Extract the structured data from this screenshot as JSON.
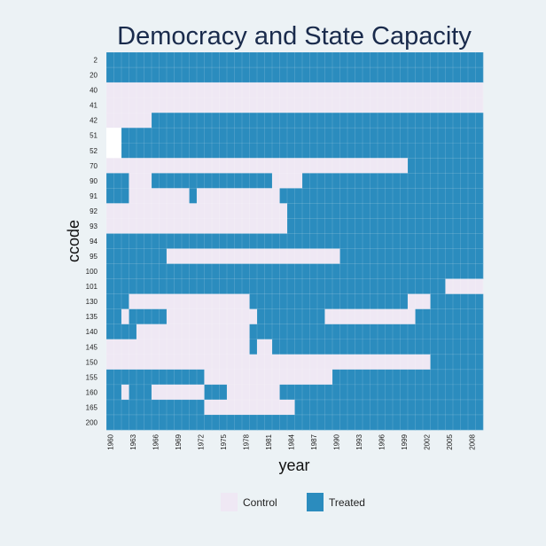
{
  "chart_data": {
    "type": "heatmap",
    "title": "Democracy and State Capacity",
    "xlabel": "year",
    "ylabel": "ccode",
    "x_tick_labels": [
      "1960",
      "1963",
      "1966",
      "1969",
      "1972",
      "1975",
      "1978",
      "1981",
      "1984",
      "1987",
      "1990",
      "1993",
      "1996",
      "1999",
      "2002",
      "2005",
      "2008"
    ],
    "years": [
      1960,
      2009
    ],
    "units": [
      "2",
      "20",
      "40",
      "41",
      "42",
      "51",
      "52",
      "70",
      "90",
      "91",
      "92",
      "93",
      "94",
      "95",
      "100",
      "101",
      "130",
      "135",
      "140",
      "145",
      "150",
      "155",
      "160",
      "165",
      "200"
    ],
    "legend": {
      "position": "bottom",
      "entries": [
        {
          "key": "control",
          "label": "Control",
          "color": "#efe8f4"
        },
        {
          "key": "treated",
          "label": "Treated",
          "color": "#2b8cbe"
        }
      ]
    },
    "missing_color": "#ffffff",
    "grid": true,
    "rows": [
      {
        "ccode": "2",
        "default": "treated",
        "runs": []
      },
      {
        "ccode": "20",
        "default": "treated",
        "runs": []
      },
      {
        "ccode": "40",
        "default": "control",
        "runs": []
      },
      {
        "ccode": "41",
        "default": "control",
        "runs": []
      },
      {
        "ccode": "42",
        "default": "treated",
        "runs": [
          {
            "from": 1960,
            "to": 1965,
            "status": "control"
          }
        ]
      },
      {
        "ccode": "51",
        "default": "treated",
        "runs": [
          {
            "from": 1960,
            "to": 1961,
            "status": "missing"
          }
        ]
      },
      {
        "ccode": "52",
        "default": "treated",
        "runs": [
          {
            "from": 1960,
            "to": 1961,
            "status": "missing"
          }
        ]
      },
      {
        "ccode": "70",
        "default": "control",
        "runs": [
          {
            "from": 2000,
            "to": 2009,
            "status": "treated"
          }
        ]
      },
      {
        "ccode": "90",
        "default": "treated",
        "runs": [
          {
            "from": 1963,
            "to": 1965,
            "status": "control"
          },
          {
            "from": 1982,
            "to": 1985,
            "status": "control"
          }
        ]
      },
      {
        "ccode": "91",
        "default": "treated",
        "runs": [
          {
            "from": 1963,
            "to": 1970,
            "status": "control"
          },
          {
            "from": 1972,
            "to": 1982,
            "status": "control"
          }
        ]
      },
      {
        "ccode": "92",
        "default": "treated",
        "runs": [
          {
            "from": 1960,
            "to": 1983,
            "status": "control"
          }
        ]
      },
      {
        "ccode": "93",
        "default": "treated",
        "runs": [
          {
            "from": 1960,
            "to": 1983,
            "status": "control"
          }
        ]
      },
      {
        "ccode": "94",
        "default": "treated",
        "runs": []
      },
      {
        "ccode": "95",
        "default": "treated",
        "runs": [
          {
            "from": 1968,
            "to": 1990,
            "status": "control"
          }
        ]
      },
      {
        "ccode": "100",
        "default": "treated",
        "runs": []
      },
      {
        "ccode": "101",
        "default": "treated",
        "runs": [
          {
            "from": 2005,
            "to": 2009,
            "status": "control"
          }
        ]
      },
      {
        "ccode": "130",
        "default": "treated",
        "runs": [
          {
            "from": 1963,
            "to": 1978,
            "status": "control"
          },
          {
            "from": 2000,
            "to": 2002,
            "status": "control"
          }
        ]
      },
      {
        "ccode": "135",
        "default": "treated",
        "runs": [
          {
            "from": 1962,
            "to": 1962,
            "status": "control"
          },
          {
            "from": 1968,
            "to": 1979,
            "status": "control"
          },
          {
            "from": 1989,
            "to": 2000,
            "status": "control"
          }
        ]
      },
      {
        "ccode": "140",
        "default": "treated",
        "runs": [
          {
            "from": 1964,
            "to": 1978,
            "status": "control"
          }
        ]
      },
      {
        "ccode": "145",
        "default": "control",
        "runs": [
          {
            "from": 1979,
            "to": 1979,
            "status": "treated"
          },
          {
            "from": 1982,
            "to": 2009,
            "status": "treated"
          }
        ]
      },
      {
        "ccode": "150",
        "default": "control",
        "runs": [
          {
            "from": 2003,
            "to": 2009,
            "status": "treated"
          }
        ]
      },
      {
        "ccode": "155",
        "default": "treated",
        "runs": [
          {
            "from": 1973,
            "to": 1989,
            "status": "control"
          }
        ]
      },
      {
        "ccode": "160",
        "default": "treated",
        "runs": [
          {
            "from": 1962,
            "to": 1962,
            "status": "control"
          },
          {
            "from": 1966,
            "to": 1972,
            "status": "control"
          },
          {
            "from": 1976,
            "to": 1982,
            "status": "control"
          }
        ]
      },
      {
        "ccode": "165",
        "default": "treated",
        "runs": [
          {
            "from": 1973,
            "to": 1984,
            "status": "control"
          }
        ]
      },
      {
        "ccode": "200",
        "default": "treated",
        "runs": []
      }
    ]
  }
}
